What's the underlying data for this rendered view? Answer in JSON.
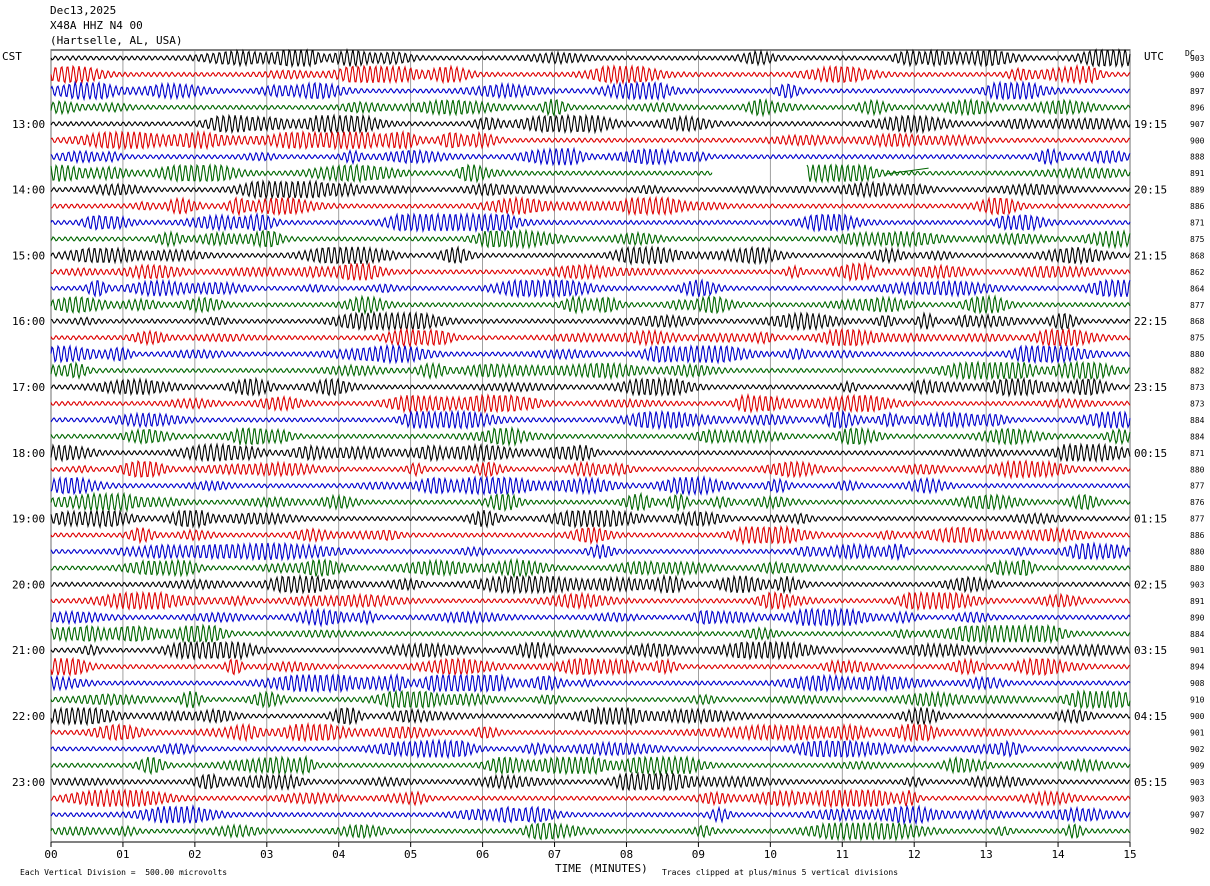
{
  "header": {
    "date": "Dec13,2025",
    "station": "X48A HHZ N4 00",
    "location": "(Hartselle, AL, USA)"
  },
  "left_axis_title": "CST",
  "right_axis_title": "UTC",
  "dc_label": "DC",
  "footer": {
    "scale_note": "Each Vertical Division =  500.00 microvolts",
    "clip_note": "Traces clipped at plus/minus 5 vertical divisions"
  },
  "chart_data": {
    "type": "helicorder",
    "xlabel": "TIME (MINUTES)",
    "x_ticks": [
      "00",
      "01",
      "02",
      "03",
      "04",
      "05",
      "06",
      "07",
      "08",
      "09",
      "10",
      "11",
      "12",
      "13",
      "14",
      "15"
    ],
    "xlim": [
      0,
      15
    ],
    "trace_colors": [
      "#000000",
      "#dd0000",
      "#0000cc",
      "#006600"
    ],
    "left_hour_labels": [
      "13:00",
      "14:00",
      "15:00",
      "16:00",
      "17:00",
      "18:00",
      "19:00",
      "20:00",
      "21:00",
      "22:00",
      "23:00"
    ],
    "right_hour_labels": [
      "19:15",
      "20:15",
      "21:15",
      "22:15",
      "23:15",
      "00:15",
      "01:15",
      "02:15",
      "03:15",
      "04:15",
      "05:15"
    ],
    "dc_offsets": [
      903,
      900,
      897,
      896,
      907,
      900,
      888,
      891,
      889,
      886,
      871,
      875,
      868,
      862,
      864,
      877,
      868,
      875,
      880,
      882,
      873,
      873,
      884,
      884,
      871,
      880,
      877,
      876,
      877,
      886,
      880,
      880,
      903,
      891,
      890,
      884,
      901,
      894,
      908,
      910,
      900,
      901,
      902,
      909,
      903,
      903,
      907,
      902
    ],
    "gap": {
      "row": 7,
      "start_min": 9.2,
      "end_min": 10.5
    }
  }
}
